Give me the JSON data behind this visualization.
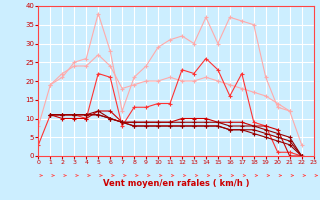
{
  "x": [
    0,
    1,
    2,
    3,
    4,
    5,
    6,
    7,
    8,
    9,
    10,
    11,
    12,
    13,
    14,
    15,
    16,
    17,
    18,
    19,
    20,
    21,
    22,
    23
  ],
  "series": [
    {
      "color": "#ffaaaa",
      "values": [
        8,
        19,
        21,
        25,
        26,
        38,
        28,
        12,
        21,
        24,
        29,
        31,
        32,
        30,
        37,
        30,
        37,
        36,
        35,
        21,
        13,
        12,
        3,
        null
      ]
    },
    {
      "color": "#ffaaaa",
      "values": [
        null,
        19,
        22,
        24,
        24,
        27,
        24,
        18,
        19,
        20,
        20,
        21,
        20,
        20,
        21,
        20,
        19,
        18,
        17,
        16,
        14,
        12,
        null,
        null
      ]
    },
    {
      "color": "#ff3333",
      "values": [
        3,
        11,
        11,
        11,
        10,
        22,
        21,
        8,
        13,
        13,
        14,
        14,
        23,
        22,
        26,
        23,
        16,
        22,
        9,
        8,
        1,
        1,
        0,
        null
      ]
    },
    {
      "color": "#cc0000",
      "values": [
        null,
        11,
        10,
        10,
        10,
        12,
        12,
        9,
        9,
        9,
        9,
        9,
        10,
        10,
        10,
        9,
        9,
        9,
        8,
        8,
        7,
        0,
        0,
        null
      ]
    },
    {
      "color": "#990000",
      "values": [
        null,
        11,
        11,
        11,
        11,
        11,
        10,
        9,
        9,
        9,
        9,
        9,
        9,
        9,
        9,
        9,
        8,
        8,
        8,
        7,
        6,
        5,
        0,
        null
      ]
    },
    {
      "color": "#990000",
      "values": [
        null,
        11,
        11,
        11,
        11,
        11,
        10,
        9,
        8,
        8,
        8,
        8,
        8,
        8,
        8,
        8,
        7,
        7,
        7,
        6,
        5,
        4,
        0,
        null
      ]
    },
    {
      "color": "#990000",
      "values": [
        null,
        11,
        11,
        11,
        11,
        12,
        10,
        9,
        8,
        8,
        8,
        8,
        8,
        8,
        8,
        8,
        7,
        7,
        6,
        5,
        4,
        3,
        0,
        null
      ]
    }
  ],
  "xlabel": "Vent moyen/en rafales ( km/h )",
  "ylim": [
    0,
    40
  ],
  "xlim": [
    0,
    23
  ],
  "yticks": [
    0,
    5,
    10,
    15,
    20,
    25,
    30,
    35,
    40
  ],
  "xticks": [
    0,
    1,
    2,
    3,
    4,
    5,
    6,
    7,
    8,
    9,
    10,
    11,
    12,
    13,
    14,
    15,
    16,
    17,
    18,
    19,
    20,
    21,
    22,
    23
  ],
  "bg_color": "#cceeff",
  "grid_color": "#ffffff",
  "arrow_color": "#ff5555"
}
